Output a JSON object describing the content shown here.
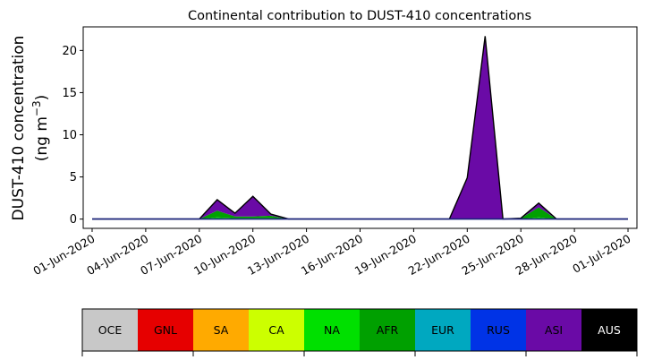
{
  "chart_data": {
    "type": "area",
    "stacked": true,
    "title": "Continental contribution to DUST-410 concentrations",
    "ylabel_line1": "DUST-410 concentration",
    "ylabel_line2_prefix": "(ng m",
    "ylabel_line2_sup": "−3",
    "ylabel_line2_suffix": ")",
    "ylim": [
      -1.1,
      22.8
    ],
    "yticks": [
      0,
      5,
      10,
      15,
      20
    ],
    "xlim": [
      "2020-05-31T12:00",
      "2020-07-01T12:00"
    ],
    "xticks": [
      {
        "date": "2020-06-01",
        "label": "01-Jun-2020"
      },
      {
        "date": "2020-06-04",
        "label": "04-Jun-2020"
      },
      {
        "date": "2020-06-07",
        "label": "07-Jun-2020"
      },
      {
        "date": "2020-06-10",
        "label": "10-Jun-2020"
      },
      {
        "date": "2020-06-13",
        "label": "13-Jun-2020"
      },
      {
        "date": "2020-06-16",
        "label": "16-Jun-2020"
      },
      {
        "date": "2020-06-19",
        "label": "19-Jun-2020"
      },
      {
        "date": "2020-06-22",
        "label": "22-Jun-2020"
      },
      {
        "date": "2020-06-25",
        "label": "25-Jun-2020"
      },
      {
        "date": "2020-06-28",
        "label": "28-Jun-2020"
      },
      {
        "date": "2020-07-01",
        "label": "01-Jul-2020"
      }
    ],
    "dates": [
      "2020-06-01",
      "2020-06-02",
      "2020-06-03",
      "2020-06-04",
      "2020-06-05",
      "2020-06-06",
      "2020-06-07",
      "2020-06-08",
      "2020-06-09",
      "2020-06-10",
      "2020-06-11",
      "2020-06-12",
      "2020-06-13",
      "2020-06-14",
      "2020-06-15",
      "2020-06-16",
      "2020-06-17",
      "2020-06-18",
      "2020-06-19",
      "2020-06-20",
      "2020-06-21",
      "2020-06-22",
      "2020-06-23",
      "2020-06-24",
      "2020-06-25",
      "2020-06-26",
      "2020-06-27",
      "2020-06-28",
      "2020-06-29",
      "2020-06-30",
      "2020-07-01"
    ],
    "series": [
      {
        "name": "OCE",
        "color": "#c8c8c8",
        "values": [
          0,
          0,
          0,
          0,
          0,
          0,
          0,
          0,
          0,
          0,
          0,
          0,
          0,
          0,
          0,
          0,
          0,
          0,
          0,
          0,
          0,
          0,
          0,
          0,
          0,
          0,
          0,
          0,
          0,
          0,
          0
        ]
      },
      {
        "name": "GNL",
        "color": "#e60000",
        "values": [
          0,
          0,
          0,
          0,
          0,
          0,
          0,
          0,
          0,
          0,
          0,
          0,
          0,
          0,
          0,
          0,
          0,
          0,
          0,
          0,
          0,
          0,
          0,
          0,
          0,
          0,
          0,
          0,
          0,
          0,
          0
        ]
      },
      {
        "name": "SA",
        "color": "#ffaa00",
        "values": [
          0,
          0,
          0,
          0,
          0,
          0,
          0,
          0,
          0,
          0,
          0,
          0,
          0,
          0,
          0,
          0,
          0,
          0,
          0,
          0,
          0,
          0,
          0,
          0,
          0,
          0,
          0,
          0,
          0,
          0,
          0
        ]
      },
      {
        "name": "CA",
        "color": "#ccff00",
        "values": [
          0,
          0,
          0,
          0,
          0,
          0,
          0,
          0,
          0,
          0,
          0,
          0,
          0,
          0,
          0,
          0,
          0,
          0,
          0,
          0,
          0,
          0,
          0,
          0,
          0,
          0,
          0,
          0,
          0,
          0,
          0
        ]
      },
      {
        "name": "NA",
        "color": "#00e000",
        "values": [
          0,
          0,
          0,
          0,
          0,
          0,
          0,
          0.2,
          0.1,
          0.1,
          0.1,
          0,
          0,
          0,
          0,
          0,
          0,
          0,
          0,
          0,
          0,
          0,
          0,
          0,
          0,
          0.2,
          0,
          0,
          0,
          0,
          0
        ]
      },
      {
        "name": "AFR",
        "color": "#00a000",
        "values": [
          0,
          0,
          0,
          0,
          0,
          0,
          0,
          0.8,
          0.2,
          0.2,
          0.3,
          0,
          0,
          0,
          0,
          0,
          0,
          0,
          0,
          0,
          0,
          0,
          0,
          0,
          0.1,
          1.2,
          0,
          0,
          0,
          0,
          0
        ]
      },
      {
        "name": "EUR",
        "color": "#00a8c0",
        "values": [
          0,
          0,
          0,
          0,
          0,
          0,
          0,
          0,
          0,
          0,
          0,
          0,
          0,
          0,
          0,
          0,
          0,
          0,
          0,
          0,
          0,
          0,
          0,
          0,
          0,
          0,
          0,
          0,
          0,
          0,
          0
        ]
      },
      {
        "name": "RUS",
        "color": "#0033e6",
        "values": [
          0,
          0,
          0,
          0,
          0,
          0,
          0,
          0,
          0,
          0,
          0,
          0,
          0,
          0,
          0,
          0,
          0,
          0,
          0,
          0,
          0,
          0,
          0,
          0,
          0,
          0,
          0,
          0,
          0,
          0,
          0
        ]
      },
      {
        "name": "ASI",
        "color": "#6a0aa6",
        "values": [
          0,
          0,
          0,
          0,
          0,
          0,
          0,
          1.3,
          0.4,
          2.4,
          0.2,
          0,
          0,
          0,
          0,
          0,
          0,
          0,
          0,
          0,
          0,
          4.9,
          21.7,
          0,
          0,
          0.5,
          0,
          0,
          0,
          0,
          0
        ]
      },
      {
        "name": "AUS",
        "color": "#000000",
        "values": [
          0,
          0,
          0,
          0,
          0,
          0,
          0,
          0,
          0,
          0,
          0,
          0,
          0,
          0,
          0,
          0,
          0,
          0,
          0,
          0,
          0,
          0,
          0,
          0,
          0,
          0,
          0,
          0,
          0,
          0,
          0
        ]
      }
    ],
    "legend": {
      "placement": "bottom",
      "style": "colorbar"
    }
  }
}
